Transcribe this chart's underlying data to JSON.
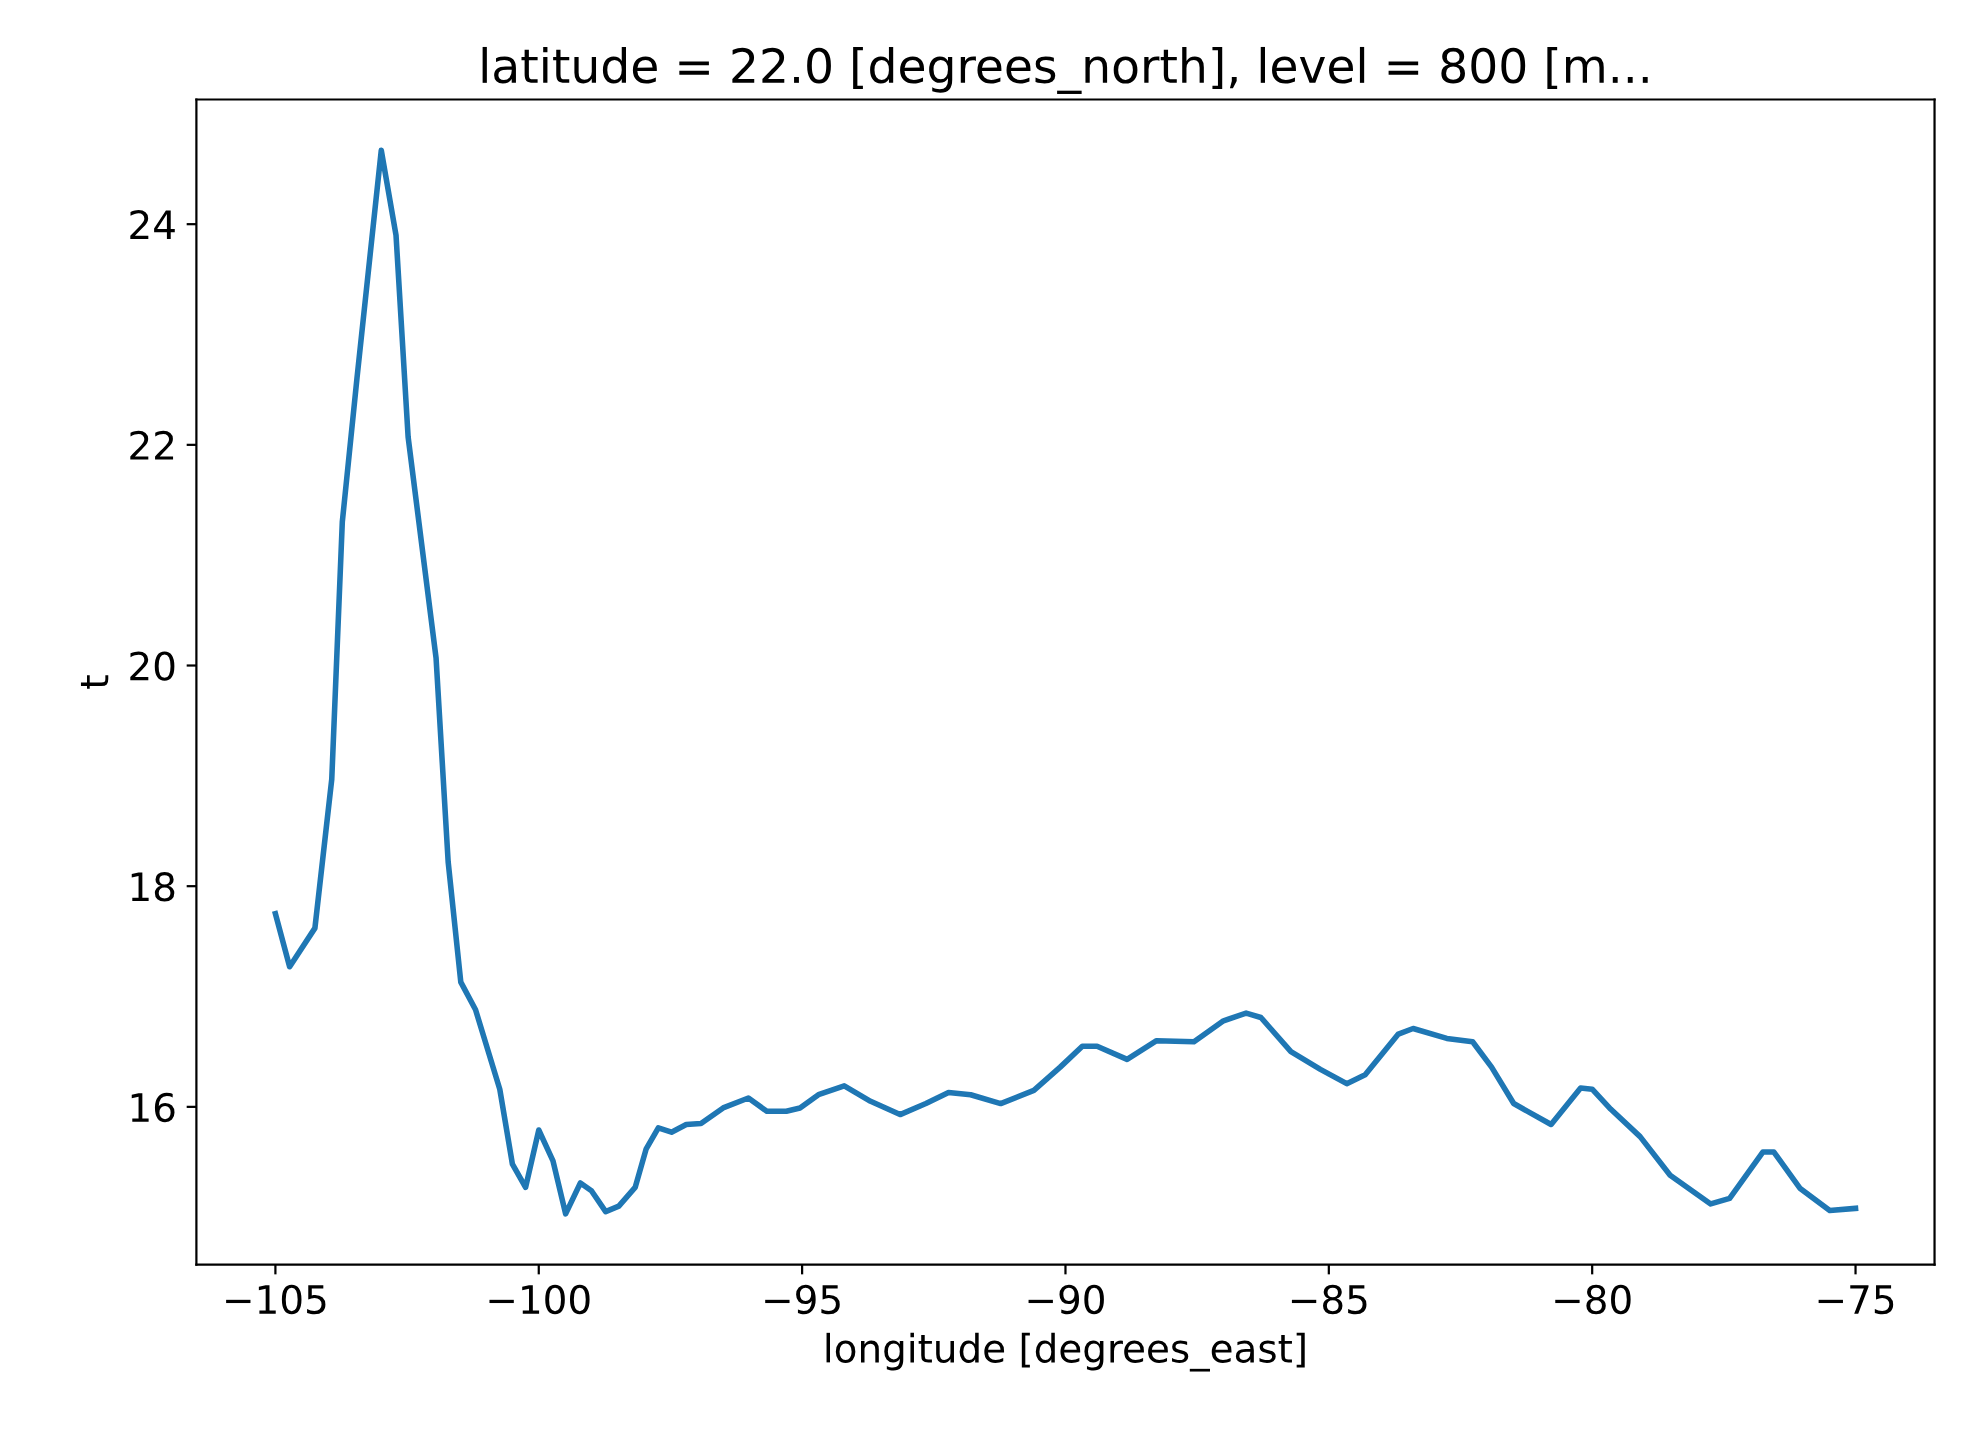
{
  "chart_data": {
    "type": "line",
    "title": "latitude = 22.0 [degrees_north], level = 800 [m...",
    "xlabel": "longitude [degrees_east]",
    "ylabel": "t",
    "xlim": [
      -106.5,
      -73.5
    ],
    "xticks": [
      {
        "value": -105,
        "label": "−105"
      },
      {
        "value": -100,
        "label": "−100"
      },
      {
        "value": -95,
        "label": "−95"
      },
      {
        "value": -90,
        "label": "−90"
      },
      {
        "value": -85,
        "label": "−85"
      },
      {
        "value": -80,
        "label": "−80"
      },
      {
        "value": -75,
        "label": "−75"
      }
    ],
    "ylim": [
      14.57,
      25.13
    ],
    "yticks": [
      16,
      18,
      20,
      22,
      24
    ],
    "grid": false,
    "legend": false,
    "series": [
      {
        "color": "#1f77b4",
        "x": [
          -105,
          -104.73,
          -104.25,
          -103.93,
          -103.73,
          -103.45,
          -102.99,
          -102.71,
          -102.48,
          -101.95,
          -101.72,
          -101.48,
          -101.2,
          -100.74,
          -100.5,
          -100.25,
          -100.0,
          -99.73,
          -99.49,
          -99.21,
          -99.0,
          -98.73,
          -98.48,
          -98.17,
          -97.96,
          -97.73,
          -97.48,
          -97.2,
          -96.92,
          -96.5,
          -96.02,
          -95.67,
          -95.3,
          -95.04,
          -94.69,
          -94.2,
          -93.7,
          -93.14,
          -92.65,
          -92.22,
          -91.8,
          -91.23,
          -90.6,
          -90.1,
          -89.68,
          -89.4,
          -88.83,
          -88.27,
          -87.56,
          -87.0,
          -86.57,
          -86.29,
          -85.72,
          -85.16,
          -84.66,
          -84.31,
          -83.68,
          -83.4,
          -82.76,
          -82.27,
          -81.91,
          -81.49,
          -80.78,
          -80.22,
          -80.0,
          -79.65,
          -79.09,
          -78.52,
          -77.75,
          -77.39,
          -76.76,
          -76.55,
          -76.05,
          -75.49,
          -75.0
        ],
        "values": [
          17.75,
          17.27,
          17.62,
          18.97,
          21.3,
          22.61,
          24.67,
          23.9,
          22.07,
          20.07,
          18.22,
          17.13,
          16.88,
          16.16,
          15.48,
          15.27,
          15.79,
          15.51,
          15.03,
          15.31,
          15.24,
          15.05,
          15.1,
          15.27,
          15.62,
          15.81,
          15.77,
          15.84,
          15.85,
          15.99,
          16.08,
          15.96,
          15.96,
          15.99,
          16.11,
          16.19,
          16.05,
          15.93,
          16.03,
          16.13,
          16.11,
          16.03,
          16.15,
          16.36,
          16.55,
          16.55,
          16.43,
          16.6,
          16.59,
          16.78,
          16.85,
          16.81,
          16.5,
          16.34,
          16.21,
          16.29,
          16.66,
          16.71,
          16.62,
          16.59,
          16.36,
          16.03,
          15.84,
          16.17,
          16.16,
          15.98,
          15.73,
          15.38,
          15.12,
          15.17,
          15.59,
          15.59,
          15.26,
          15.06,
          15.08
        ]
      }
    ]
  }
}
